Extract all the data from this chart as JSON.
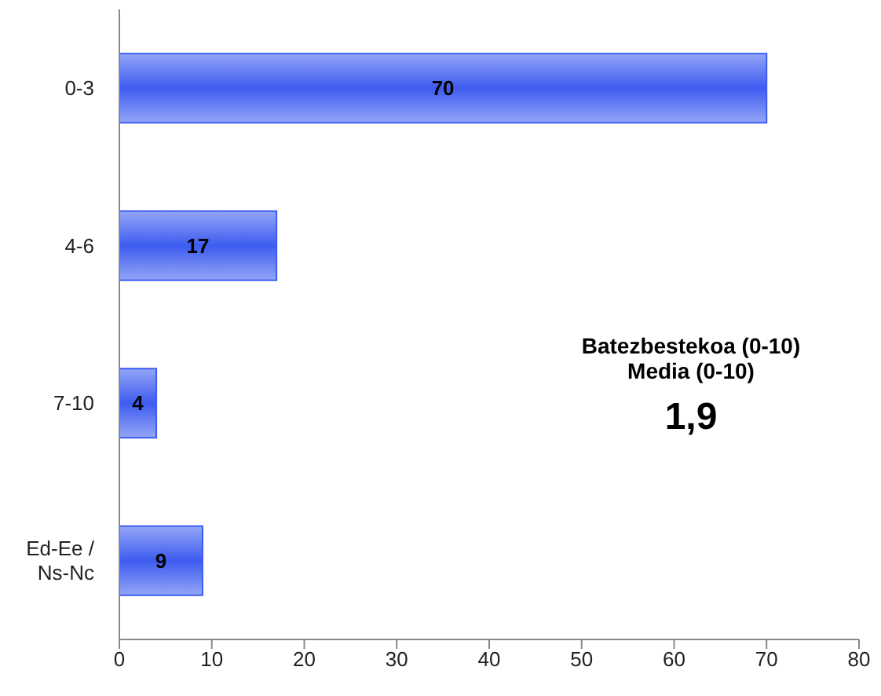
{
  "chart_data": {
    "type": "bar",
    "orientation": "horizontal",
    "categories": [
      "0-3",
      "4-6",
      "7-10",
      "Ed-Ee / Ns-Nc"
    ],
    "values": [
      70,
      17,
      4,
      9
    ],
    "color": "#3d5cf0",
    "xlim": [
      0,
      80
    ],
    "xticks": [
      0,
      10,
      20,
      30,
      40,
      50,
      60,
      70,
      80
    ],
    "data_labels": true,
    "annotations": [
      "Batezbestekoa (0-10)",
      "Media (0-10)",
      "1,9"
    ]
  }
}
